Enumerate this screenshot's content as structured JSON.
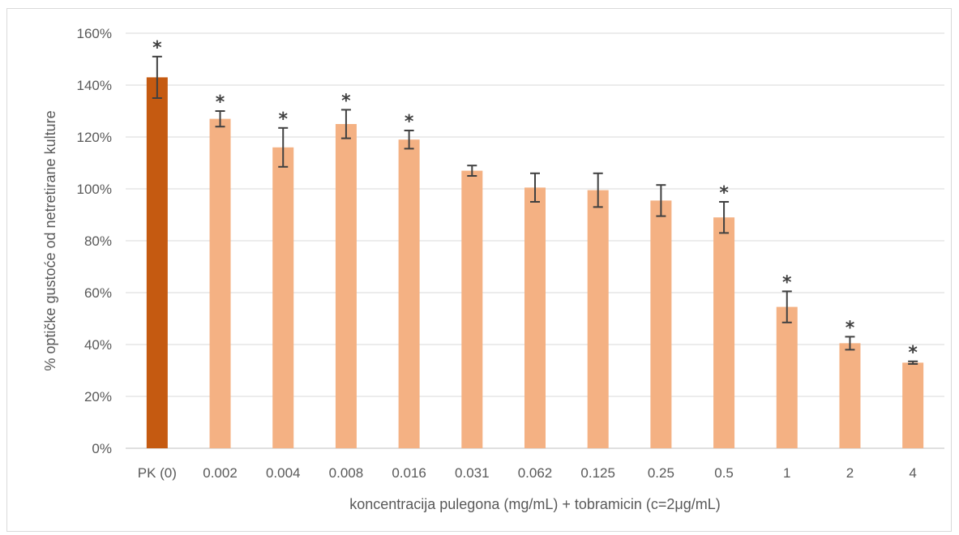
{
  "chart_data": {
    "type": "bar",
    "title": "",
    "xlabel": "koncentracija pulegona (mg/mL) + tobramicin (c=2μg/mL)",
    "ylabel": "% optičke gustoće od netretirane kulture",
    "ylim": [
      0,
      160
    ],
    "yticks": [
      "0%",
      "20%",
      "40%",
      "60%",
      "80%",
      "100%",
      "120%",
      "140%",
      "160%"
    ],
    "grid": true,
    "categories": [
      "PK (0)",
      "0.002",
      "0.004",
      "0.008",
      "0.016",
      "0.031",
      "0.062",
      "0.125",
      "0.25",
      "0.5",
      "1",
      "2",
      "4"
    ],
    "values": [
      143,
      127,
      116,
      125,
      119,
      107,
      100.5,
      99.5,
      95.5,
      89,
      54.5,
      40.5,
      33
    ],
    "errors": [
      8,
      3,
      7.5,
      5.5,
      3.5,
      2,
      5.5,
      6.5,
      6,
      6,
      6,
      2.5,
      0.5
    ],
    "significance": [
      "*",
      "*",
      "*",
      "*",
      "*",
      "",
      "",
      "",
      "",
      "*",
      "*",
      "*",
      "*"
    ],
    "colors": {
      "control": "#c55a11",
      "treatment": "#f4b183",
      "grid": "#d9d9d9",
      "axis": "#bfbfbf",
      "error_bar": "#404040"
    }
  }
}
